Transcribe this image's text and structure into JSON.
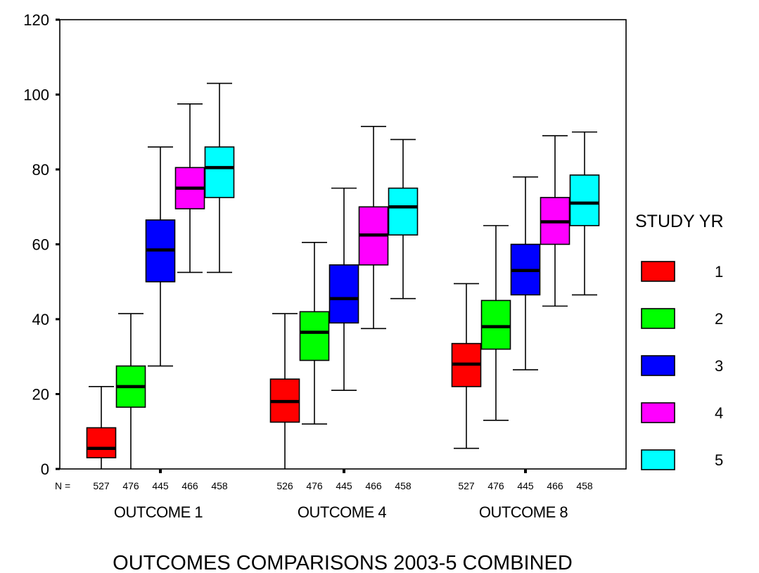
{
  "chart_data": {
    "type": "boxplot",
    "title": "OUTCOMES COMPARISONS 2003-5 COMBINED",
    "ylim": [
      0,
      120
    ],
    "yticks": [
      "0",
      "20",
      "40",
      "60",
      "80",
      "100",
      "120"
    ],
    "n_label": "N =",
    "grid": false,
    "legend": {
      "title": "STUDY YR",
      "position": "right",
      "entries": [
        "1",
        "2",
        "3",
        "4",
        "5"
      ],
      "colors": [
        "#ff0000",
        "#00ff00",
        "#0000ff",
        "#ff00ff",
        "#00ffff"
      ]
    },
    "groups": [
      {
        "label": "OUTCOME 1",
        "boxes": [
          {
            "year": "1",
            "n": "527",
            "min": 0,
            "q1": 3,
            "median": 5.5,
            "q3": 11,
            "max": 22
          },
          {
            "year": "2",
            "n": "476",
            "min": 0,
            "q1": 16.5,
            "median": 22,
            "q3": 27.5,
            "max": 41.5
          },
          {
            "year": "3",
            "n": "445",
            "min": 27.5,
            "q1": 50,
            "median": 58.5,
            "q3": 66.5,
            "max": 86
          },
          {
            "year": "4",
            "n": "466",
            "min": 52.5,
            "q1": 69.5,
            "median": 75,
            "q3": 80.5,
            "max": 97.5
          },
          {
            "year": "5",
            "n": "458",
            "min": 52.5,
            "q1": 72.5,
            "median": 80.5,
            "q3": 86,
            "max": 103
          }
        ]
      },
      {
        "label": "OUTCOME 4",
        "boxes": [
          {
            "year": "1",
            "n": "526",
            "min": 0,
            "q1": 12.5,
            "median": 18,
            "q3": 24,
            "max": 41.5
          },
          {
            "year": "2",
            "n": "476",
            "min": 12,
            "q1": 29,
            "median": 36.5,
            "q3": 42,
            "max": 60.5
          },
          {
            "year": "3",
            "n": "445",
            "min": 21,
            "q1": 39,
            "median": 45.5,
            "q3": 54.5,
            "max": 75
          },
          {
            "year": "4",
            "n": "466",
            "min": 37.5,
            "q1": 54.5,
            "median": 62.5,
            "q3": 70,
            "max": 91.5
          },
          {
            "year": "5",
            "n": "458",
            "min": 45.5,
            "q1": 62.5,
            "median": 70,
            "q3": 75,
            "max": 88
          }
        ]
      },
      {
        "label": "OUTCOME 8",
        "boxes": [
          {
            "year": "1",
            "n": "527",
            "min": 5.5,
            "q1": 22,
            "median": 28,
            "q3": 33.5,
            "max": 49.5
          },
          {
            "year": "2",
            "n": "476",
            "min": 13,
            "q1": 32,
            "median": 38,
            "q3": 45,
            "max": 65
          },
          {
            "year": "3",
            "n": "445",
            "min": 26.5,
            "q1": 46.5,
            "median": 53,
            "q3": 60,
            "max": 78
          },
          {
            "year": "4",
            "n": "466",
            "min": 43.5,
            "q1": 60,
            "median": 66,
            "q3": 72.5,
            "max": 89
          },
          {
            "year": "5",
            "n": "458",
            "min": 46.5,
            "q1": 65,
            "median": 71,
            "q3": 78.5,
            "max": 90
          }
        ]
      }
    ]
  }
}
